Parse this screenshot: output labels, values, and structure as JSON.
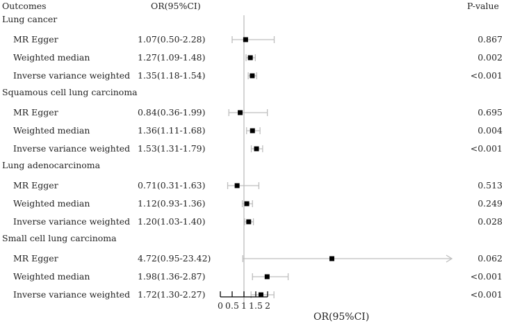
{
  "header": {
    "outcomes_label": "Outcomes",
    "or_label": "OR(95%CI)",
    "pvalue_label": "P-value"
  },
  "chart_data": {
    "type": "forest",
    "xlabel": "OR(95%CI)",
    "reference_line": 1,
    "xlim": [
      0,
      2
    ],
    "xticks": [
      0,
      0.5,
      1,
      1.5,
      2
    ],
    "xtick_labels": [
      "0",
      "0.5",
      "1",
      "1.5",
      "2"
    ],
    "colors": {
      "point": "#000000",
      "ci": "#bdbdbd",
      "reference": "#bdbdbd",
      "axis": "#000000"
    },
    "groups": [
      {
        "name": "Lung cancer",
        "rows": [
          {
            "method": "MR Egger",
            "or": 1.07,
            "lo": 0.5,
            "hi": 2.28,
            "or_text": "1.07(0.50-2.28)",
            "p": "0.867"
          },
          {
            "method": "Weighted median",
            "or": 1.27,
            "lo": 1.09,
            "hi": 1.48,
            "or_text": "1.27(1.09-1.48)",
            "p": "0.002"
          },
          {
            "method": "Inverse variance weighted",
            "or": 1.35,
            "lo": 1.18,
            "hi": 1.54,
            "or_text": "1.35(1.18-1.54)",
            "p": "<0.001"
          }
        ]
      },
      {
        "name": "Squamous cell lung carcinoma",
        "rows": [
          {
            "method": "MR Egger",
            "or": 0.84,
            "lo": 0.36,
            "hi": 1.99,
            "or_text": "0.84(0.36-1.99)",
            "p": "0.695"
          },
          {
            "method": "Weighted median",
            "or": 1.36,
            "lo": 1.11,
            "hi": 1.68,
            "or_text": "1.36(1.11-1.68)",
            "p": "0.004"
          },
          {
            "method": "Inverse variance weighted",
            "or": 1.53,
            "lo": 1.31,
            "hi": 1.79,
            "or_text": "1.53(1.31-1.79)",
            "p": "<0.001"
          }
        ]
      },
      {
        "name": "Lung adenocarcinoma",
        "rows": [
          {
            "method": "MR Egger",
            "or": 0.71,
            "lo": 0.31,
            "hi": 1.63,
            "or_text": "0.71(0.31-1.63)",
            "p": "0.513"
          },
          {
            "method": "Weighted median",
            "or": 1.12,
            "lo": 0.93,
            "hi": 1.36,
            "or_text": "1.12(0.93-1.36)",
            "p": "0.249"
          },
          {
            "method": "Inverse variance weighted",
            "or": 1.2,
            "lo": 1.03,
            "hi": 1.4,
            "or_text": "1.20(1.03-1.40)",
            "p": "0.028"
          }
        ]
      },
      {
        "name": "Small cell lung carcinoma",
        "rows": [
          {
            "method": "MR Egger",
            "or": 4.72,
            "lo": 0.95,
            "hi": 23.42,
            "or_text": "4.72(0.95-23.42)",
            "p": "0.062"
          },
          {
            "method": "Weighted median",
            "or": 1.98,
            "lo": 1.36,
            "hi": 2.87,
            "or_text": "1.98(1.36-2.87)",
            "p": "<0.001"
          },
          {
            "method": "Inverse variance weighted",
            "or": 1.72,
            "lo": 1.3,
            "hi": 2.27,
            "or_text": "1.72(1.30-2.27)",
            "p": "<0.001"
          }
        ]
      }
    ]
  }
}
